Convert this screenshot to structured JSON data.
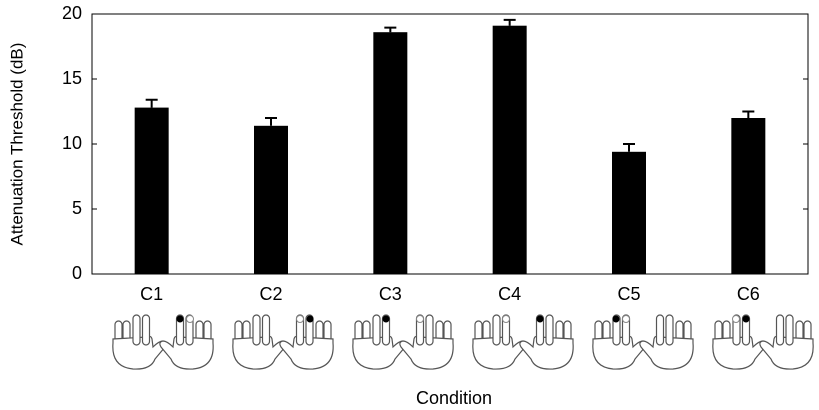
{
  "chart_data": {
    "type": "bar",
    "categories": [
      "C1",
      "C2",
      "C3",
      "C4",
      "C5",
      "C6"
    ],
    "values": [
      12.8,
      11.4,
      18.6,
      19.1,
      9.4,
      12.0
    ],
    "errors": [
      0.6,
      0.6,
      0.35,
      0.45,
      0.6,
      0.5
    ],
    "color": "#000000",
    "ylim": [
      0,
      20
    ],
    "yticks": [
      0,
      5,
      10,
      15,
      20
    ],
    "xlabel": "Condition",
    "ylabel": "Attenuation Threshold (dB)"
  }
}
